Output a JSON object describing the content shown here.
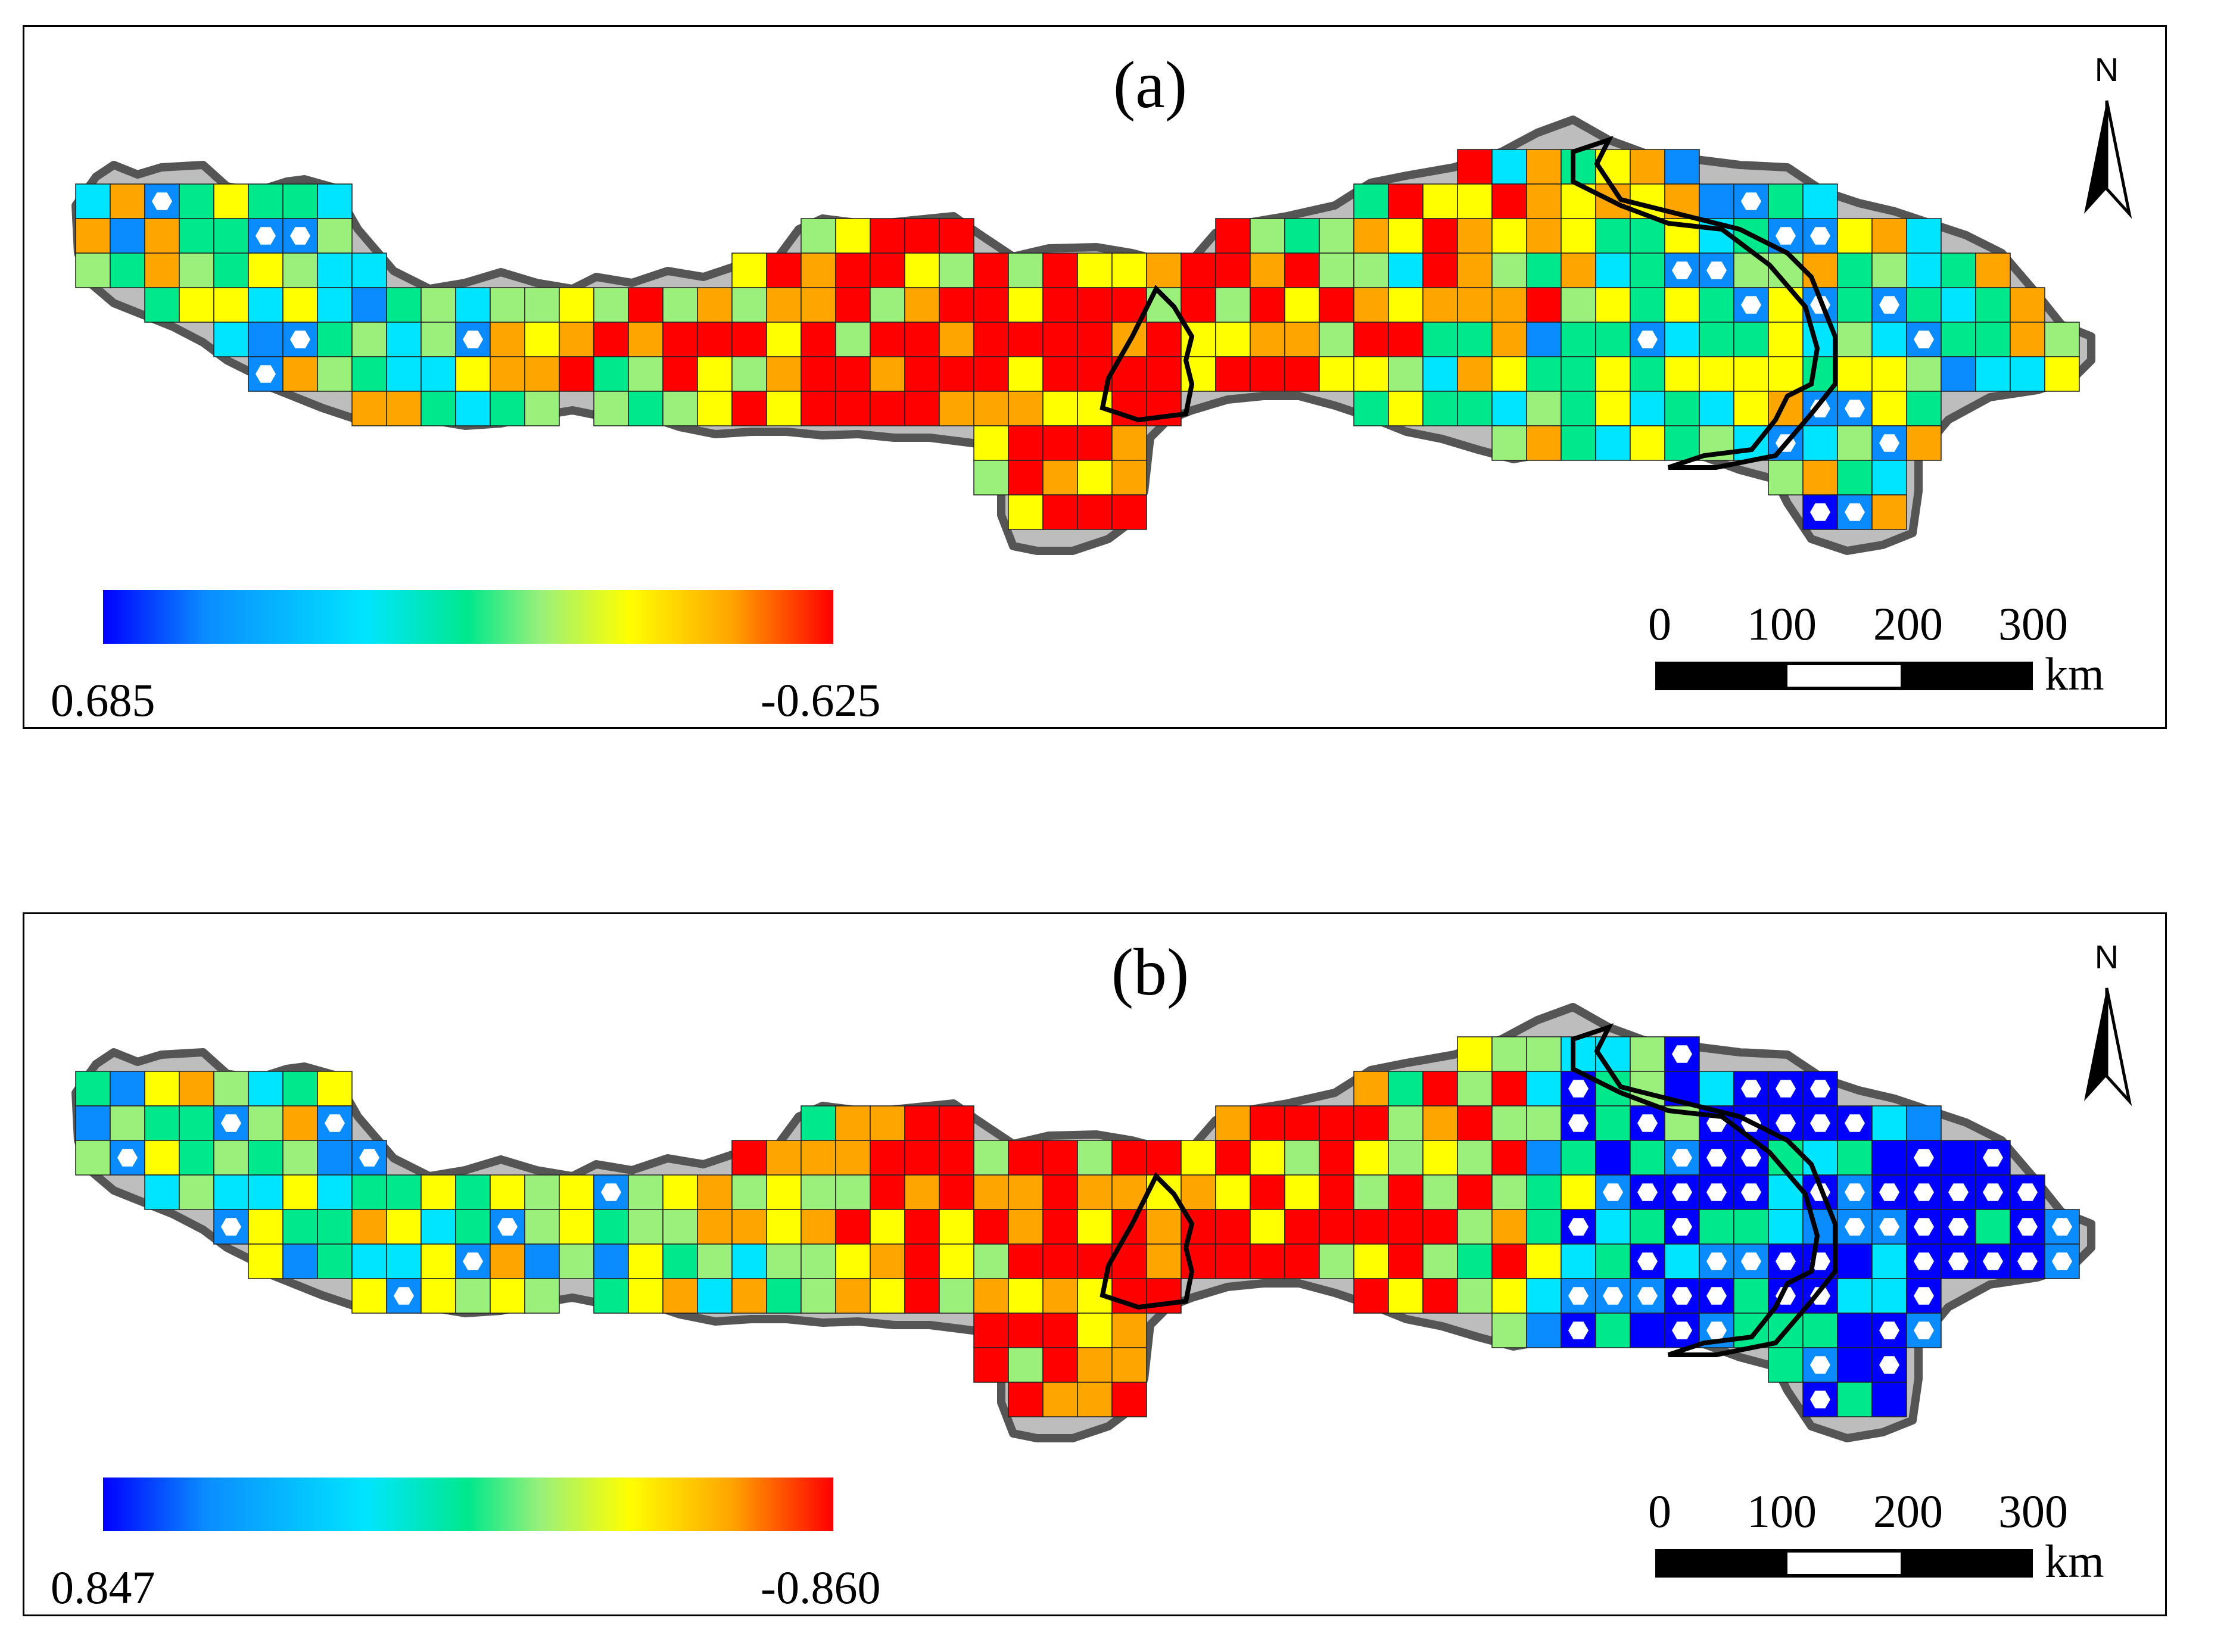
{
  "figure": {
    "panels": [
      {
        "id": "a",
        "label": "(a)",
        "legend_min": "0.685",
        "legend_max": "-0.625",
        "north_label": "N",
        "scale_ticks": [
          "0",
          "100",
          "200",
          "300"
        ],
        "scale_unit": "km"
      },
      {
        "id": "b",
        "label": "(b)",
        "legend_min": "0.847",
        "legend_max": "-0.860",
        "north_label": "N",
        "scale_ticks": [
          "0",
          "100",
          "200",
          "300"
        ],
        "scale_unit": "km"
      }
    ],
    "colormap": [
      "#0000ff",
      "#0a8cff",
      "#00e5ff",
      "#00e88c",
      "#9af07a",
      "#ffff00",
      "#ffa500",
      "#ff0000"
    ],
    "marker_color": "#ffffff",
    "boundary_color": "#555555",
    "region_line_color": "#000000"
  }
}
